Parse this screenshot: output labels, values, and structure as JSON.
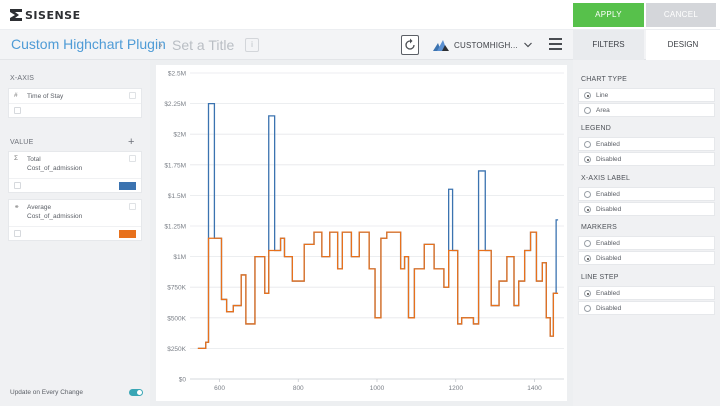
{
  "app": {
    "logo_text": "SISENSE"
  },
  "topbar": {
    "apply_label": "APPLY",
    "cancel_label": "CANCEL",
    "apply_color": "#57c14b"
  },
  "titlebar": {
    "widget_title": "Custom Highchart Plugin",
    "separator": "›",
    "subtitle_placeholder": "Set a Title",
    "chart_type_label": "CUSTOMHIGH...",
    "tabs": [
      {
        "label": "FILTERS"
      },
      {
        "label": "DESIGN"
      }
    ]
  },
  "left_panel": {
    "xaxis_heading": "X-AXIS",
    "xaxis_field": {
      "icon": "#",
      "name": "Time of Stay"
    },
    "value_heading": "VALUE",
    "add_icon": "+",
    "values": [
      {
        "icon": "Σ",
        "name": "Total",
        "name_line2": "Cost_of_admission",
        "color": "#3b73b0"
      },
      {
        "icon": "⚭",
        "name": "Average",
        "name_line2": "Cost_of_admission",
        "color": "#e8711c"
      }
    ],
    "update_label": "Update on Every Change",
    "update_enabled": true
  },
  "design_panel": {
    "sections": [
      {
        "title": "CHART TYPE",
        "options": [
          {
            "label": "Line",
            "selected": true
          },
          {
            "label": "Area",
            "selected": false
          }
        ]
      },
      {
        "title": "LEGEND",
        "options": [
          {
            "label": "Enabled",
            "selected": false
          },
          {
            "label": "Disabled",
            "selected": true
          }
        ]
      },
      {
        "title": "X-AXIS LABEL",
        "options": [
          {
            "label": "Enabled",
            "selected": false
          },
          {
            "label": "Disabled",
            "selected": true
          }
        ]
      },
      {
        "title": "MARKERS",
        "options": [
          {
            "label": "Enabled",
            "selected": false
          },
          {
            "label": "Disabled",
            "selected": true
          }
        ]
      },
      {
        "title": "LINE STEP",
        "options": [
          {
            "label": "Enabled",
            "selected": true
          },
          {
            "label": "Disabled",
            "selected": false
          }
        ]
      }
    ]
  },
  "chart_data": {
    "type": "line",
    "step": true,
    "x_ticks": [
      600,
      800,
      1000,
      1200,
      1400
    ],
    "xlim": [
      525,
      1475
    ],
    "y_ticks": [
      "$0",
      "$250K",
      "$500K",
      "$750K",
      "$1M",
      "$1.25M",
      "$1.5M",
      "$1.75M",
      "$2M",
      "$2.25M",
      "$2.5M"
    ],
    "ylim": [
      0,
      2500000
    ],
    "grid": true,
    "legend": false,
    "series": [
      {
        "color": "#3b73b0",
        "points": [
          [
            545,
            250000
          ],
          [
            555,
            250000
          ],
          [
            565,
            300000
          ],
          [
            572,
            2250000
          ],
          [
            580,
            2250000
          ],
          [
            587,
            1150000
          ],
          [
            605,
            650000
          ],
          [
            618,
            550000
          ],
          [
            635,
            600000
          ],
          [
            655,
            850000
          ],
          [
            667,
            450000
          ],
          [
            690,
            1000000
          ],
          [
            715,
            700000
          ],
          [
            725,
            2150000
          ],
          [
            740,
            1050000
          ],
          [
            755,
            1150000
          ],
          [
            765,
            1000000
          ],
          [
            785,
            800000
          ],
          [
            815,
            1100000
          ],
          [
            840,
            1200000
          ],
          [
            860,
            1000000
          ],
          [
            880,
            1200000
          ],
          [
            900,
            900000
          ],
          [
            912,
            1200000
          ],
          [
            935,
            1000000
          ],
          [
            955,
            1200000
          ],
          [
            980,
            900000
          ],
          [
            995,
            500000
          ],
          [
            1010,
            1150000
          ],
          [
            1025,
            1200000
          ],
          [
            1060,
            900000
          ],
          [
            1070,
            1000000
          ],
          [
            1080,
            500000
          ],
          [
            1095,
            900000
          ],
          [
            1120,
            1100000
          ],
          [
            1145,
            900000
          ],
          [
            1170,
            750000
          ],
          [
            1182,
            1550000
          ],
          [
            1192,
            1050000
          ],
          [
            1205,
            450000
          ],
          [
            1215,
            500000
          ],
          [
            1245,
            450000
          ],
          [
            1258,
            1700000
          ],
          [
            1275,
            1050000
          ],
          [
            1290,
            600000
          ],
          [
            1310,
            800000
          ],
          [
            1330,
            1000000
          ],
          [
            1348,
            600000
          ],
          [
            1360,
            800000
          ],
          [
            1375,
            1050000
          ],
          [
            1390,
            1200000
          ],
          [
            1405,
            800000
          ],
          [
            1420,
            950000
          ],
          [
            1430,
            500000
          ],
          [
            1440,
            350000
          ],
          [
            1448,
            700000
          ],
          [
            1455,
            1300000
          ],
          [
            1460,
            1300000
          ]
        ]
      },
      {
        "color": "#e8711c",
        "points": [
          [
            545,
            250000
          ],
          [
            555,
            250000
          ],
          [
            565,
            300000
          ],
          [
            572,
            1150000
          ],
          [
            580,
            1150000
          ],
          [
            587,
            1150000
          ],
          [
            605,
            650000
          ],
          [
            618,
            550000
          ],
          [
            635,
            600000
          ],
          [
            655,
            850000
          ],
          [
            667,
            450000
          ],
          [
            690,
            1000000
          ],
          [
            715,
            700000
          ],
          [
            725,
            1050000
          ],
          [
            740,
            1050000
          ],
          [
            755,
            1150000
          ],
          [
            765,
            1000000
          ],
          [
            785,
            800000
          ],
          [
            815,
            1100000
          ],
          [
            840,
            1200000
          ],
          [
            860,
            1000000
          ],
          [
            880,
            1200000
          ],
          [
            900,
            900000
          ],
          [
            912,
            1200000
          ],
          [
            935,
            1000000
          ],
          [
            955,
            1200000
          ],
          [
            980,
            900000
          ],
          [
            995,
            500000
          ],
          [
            1010,
            1150000
          ],
          [
            1025,
            1200000
          ],
          [
            1060,
            900000
          ],
          [
            1070,
            1000000
          ],
          [
            1080,
            500000
          ],
          [
            1095,
            900000
          ],
          [
            1120,
            1100000
          ],
          [
            1145,
            900000
          ],
          [
            1170,
            750000
          ],
          [
            1182,
            1050000
          ],
          [
            1192,
            1050000
          ],
          [
            1205,
            450000
          ],
          [
            1215,
            500000
          ],
          [
            1245,
            450000
          ],
          [
            1258,
            1050000
          ],
          [
            1275,
            1050000
          ],
          [
            1290,
            600000
          ],
          [
            1310,
            800000
          ],
          [
            1330,
            1000000
          ],
          [
            1348,
            600000
          ],
          [
            1360,
            800000
          ],
          [
            1375,
            1050000
          ],
          [
            1390,
            1200000
          ],
          [
            1405,
            800000
          ],
          [
            1420,
            950000
          ],
          [
            1430,
            500000
          ],
          [
            1440,
            350000
          ],
          [
            1448,
            700000
          ],
          [
            1455,
            700000
          ],
          [
            1460,
            700000
          ]
        ]
      }
    ]
  }
}
